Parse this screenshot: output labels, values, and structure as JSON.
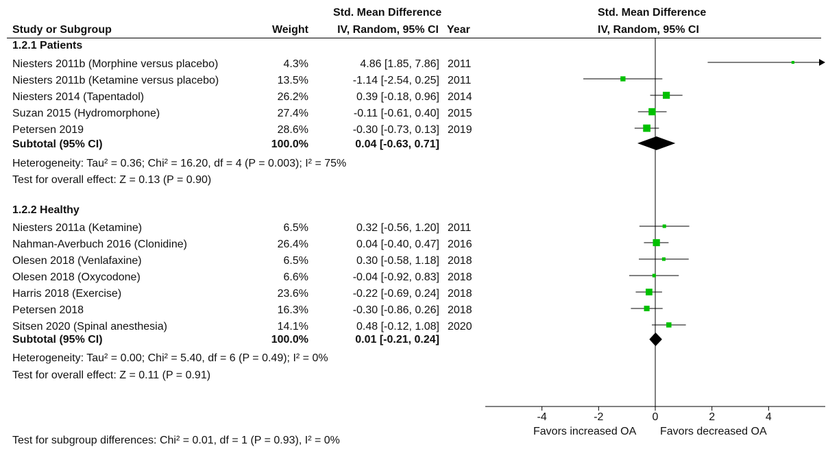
{
  "header": {
    "smd_top_left": "Std. Mean Difference",
    "smd_top_right": "Std. Mean Difference",
    "col_study": "Study or Subgroup",
    "col_weight": "Weight",
    "col_ci": "IV, Random, 95% CI",
    "col_year": "Year",
    "col_plot": "IV, Random, 95% CI"
  },
  "groups": [
    {
      "title": "1.2.1 Patients",
      "studies": [
        {
          "name": "Niesters 2011b (Morphine versus placebo)",
          "weight": "4.3%",
          "ci": "4.86 [1.85, 7.86]",
          "year": "2011"
        },
        {
          "name": "Niesters 2011b (Ketamine versus placebo)",
          "weight": "13.5%",
          "ci": "-1.14 [-2.54, 0.25]",
          "year": "2011"
        },
        {
          "name": "Niesters 2014 (Tapentadol)",
          "weight": "26.2%",
          "ci": "0.39 [-0.18, 0.96]",
          "year": "2014"
        },
        {
          "name": "Suzan 2015 (Hydromorphone)",
          "weight": "27.4%",
          "ci": "-0.11 [-0.61, 0.40]",
          "year": "2015"
        },
        {
          "name": "Petersen 2019",
          "weight": "28.6%",
          "ci": "-0.30 [-0.73, 0.13]",
          "year": "2019"
        }
      ],
      "subtotal": {
        "label": "Subtotal (95% CI)",
        "weight": "100.0%",
        "ci": "0.04 [-0.63, 0.71]"
      },
      "heterogeneity": "Heterogeneity: Tau² = 0.36; Chi² = 16.20, df = 4 (P = 0.003); I² = 75%",
      "overall": "Test for overall effect: Z = 0.13 (P = 0.90)"
    },
    {
      "title": "1.2.2 Healthy",
      "studies": [
        {
          "name": "Niesters 2011a (Ketamine)",
          "weight": "6.5%",
          "ci": "0.32 [-0.56, 1.20]",
          "year": "2011"
        },
        {
          "name": "Nahman-Averbuch 2016 (Clonidine)",
          "weight": "26.4%",
          "ci": "0.04 [-0.40, 0.47]",
          "year": "2016"
        },
        {
          "name": "Olesen 2018 (Venlafaxine)",
          "weight": "6.5%",
          "ci": "0.30 [-0.58, 1.18]",
          "year": "2018"
        },
        {
          "name": "Olesen 2018 (Oxycodone)",
          "weight": "6.6%",
          "ci": "-0.04 [-0.92, 0.83]",
          "year": "2018"
        },
        {
          "name": "Harris 2018 (Exercise)",
          "weight": "23.6%",
          "ci": "-0.22 [-0.69, 0.24]",
          "year": "2018"
        },
        {
          "name": "Petersen 2018",
          "weight": "16.3%",
          "ci": "-0.30 [-0.86, 0.26]",
          "year": "2018"
        },
        {
          "name": "Sitsen 2020 (Spinal anesthesia)",
          "weight": "14.1%",
          "ci": "0.48 [-0.12, 1.08]",
          "year": "2020"
        }
      ],
      "subtotal": {
        "label": "Subtotal (95% CI)",
        "weight": "100.0%",
        "ci": "0.01 [-0.21, 0.24]"
      },
      "heterogeneity": "Heterogeneity: Tau² = 0.00; Chi² = 5.40, df = 6 (P = 0.49); I² = 0%",
      "overall": "Test for overall effect: Z = 0.11 (P = 0.91)"
    }
  ],
  "footer": {
    "subgroup_test": "Test for subgroup differences: Chi² = 0.01, df = 1 (P = 0.93), I² = 0%",
    "favors_left": "Favors increased OA",
    "favors_right": "Favors decreased OA"
  },
  "colors": {
    "square": "#00c000",
    "diamond": "#000000",
    "line": "#000000"
  },
  "chart_data": {
    "type": "forest",
    "xlim": [
      -6,
      6
    ],
    "xticks": [
      -4,
      -2,
      0,
      2,
      4
    ],
    "series": [
      {
        "name": "1.2.1 Patients",
        "points": [
          {
            "est": 4.86,
            "lo": 1.85,
            "hi": 7.86,
            "weight": 4.3,
            "clipped_right": true
          },
          {
            "est": -1.14,
            "lo": -2.54,
            "hi": 0.25,
            "weight": 13.5
          },
          {
            "est": 0.39,
            "lo": -0.18,
            "hi": 0.96,
            "weight": 26.2
          },
          {
            "est": -0.11,
            "lo": -0.61,
            "hi": 0.4,
            "weight": 27.4
          },
          {
            "est": -0.3,
            "lo": -0.73,
            "hi": 0.13,
            "weight": 28.6
          }
        ],
        "subtotal": {
          "est": 0.04,
          "lo": -0.63,
          "hi": 0.71
        }
      },
      {
        "name": "1.2.2 Healthy",
        "points": [
          {
            "est": 0.32,
            "lo": -0.56,
            "hi": 1.2,
            "weight": 6.5
          },
          {
            "est": 0.04,
            "lo": -0.4,
            "hi": 0.47,
            "weight": 26.4
          },
          {
            "est": 0.3,
            "lo": -0.58,
            "hi": 1.18,
            "weight": 6.5
          },
          {
            "est": -0.04,
            "lo": -0.92,
            "hi": 0.83,
            "weight": 6.6
          },
          {
            "est": -0.22,
            "lo": -0.69,
            "hi": 0.24,
            "weight": 23.6
          },
          {
            "est": -0.3,
            "lo": -0.86,
            "hi": 0.26,
            "weight": 16.3
          },
          {
            "est": 0.48,
            "lo": -0.12,
            "hi": 1.08,
            "weight": 14.1
          }
        ],
        "subtotal": {
          "est": 0.01,
          "lo": -0.21,
          "hi": 0.24
        }
      }
    ]
  }
}
